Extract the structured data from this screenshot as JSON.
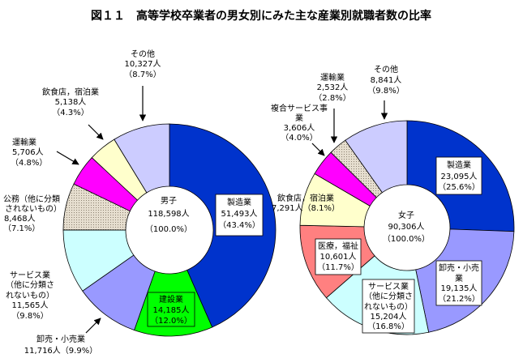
{
  "title": "図１１　高等学校卒業者の男女別にみた主な産業別就職者数の比率",
  "chart_data": [
    {
      "type": "pie",
      "center_label": [
        "男子",
        "118,598人",
        "（100.0%）"
      ],
      "slices": [
        {
          "value": 51493,
          "percent": 43.4,
          "color": "#0033CC",
          "label": [
            "製造業",
            "51,493人",
            "（43.4%）"
          ]
        },
        {
          "value": 14185,
          "percent": 12.0,
          "color": "#00FF00",
          "label": [
            "建設業",
            "14,185人",
            "（12.0%）"
          ]
        },
        {
          "value": 11716,
          "percent": 9.9,
          "color": "#9999FF",
          "label": [
            "卸売・小売業",
            "11,716人（9.9%）"
          ]
        },
        {
          "value": 11565,
          "percent": 9.8,
          "color": "#CCFFFF",
          "label": [
            "サービス業",
            "（他に分類さ",
            "れないもの）",
            "11,565人",
            "（9.8%）"
          ]
        },
        {
          "value": 8468,
          "percent": 7.1,
          "color": "#E3DBCB",
          "label": [
            "公務（他に分類",
            "されないもの）",
            "8,468人",
            "（7.1%）"
          ]
        },
        {
          "value": 5706,
          "percent": 4.8,
          "color": "#FF00FF",
          "label": [
            "運輸業",
            "5,706人",
            "（4.8%）"
          ]
        },
        {
          "value": 5138,
          "percent": 4.3,
          "color": "#FFFFCC",
          "label": [
            "飲食店，宿泊業",
            "5,138人",
            "（4.3%）"
          ]
        },
        {
          "value": 10327,
          "percent": 8.7,
          "color": "#CCCCFF",
          "label": [
            "その他",
            "10,327人",
            "（8.7%）"
          ]
        }
      ]
    },
    {
      "type": "pie",
      "center_label": [
        "女子",
        "90,306人",
        "（100.0%）"
      ],
      "slices": [
        {
          "value": 23095,
          "percent": 25.6,
          "color": "#0033CC",
          "label": [
            "製造業",
            "23,095人",
            "（25.6%）"
          ]
        },
        {
          "value": 19135,
          "percent": 21.2,
          "color": "#9999FF",
          "label": [
            "卸売・小売",
            "業",
            "19,135人",
            "（21.2%）"
          ]
        },
        {
          "value": 15204,
          "percent": 16.8,
          "color": "#CCFFFF",
          "label": [
            "サービス業",
            "（他に分類さ",
            "れないもの）",
            "15,204人",
            "（16.8%）"
          ]
        },
        {
          "value": 10601,
          "percent": 11.7,
          "color": "#FF8080",
          "label": [
            "医療，福祉",
            "10,601人",
            "（11.7%）"
          ]
        },
        {
          "value": 7291,
          "percent": 8.1,
          "color": "#FFFFCC",
          "label": [
            "飲食店，宿泊業",
            "7,291人（8.1%）"
          ]
        },
        {
          "value": 3606,
          "percent": 4.0,
          "color": "#FF00FF",
          "label": [
            "複合サービス事",
            "業",
            "3,606人",
            "（4.0%）"
          ]
        },
        {
          "value": 2532,
          "percent": 2.8,
          "color": "#E3DBCB",
          "label": [
            "運輸業",
            "2,532人",
            "（2.8%）"
          ]
        },
        {
          "value": 8841,
          "percent": 9.8,
          "color": "#CCCCFF",
          "label": [
            "その他",
            "8,841人",
            "（9.8%）"
          ]
        }
      ]
    }
  ]
}
